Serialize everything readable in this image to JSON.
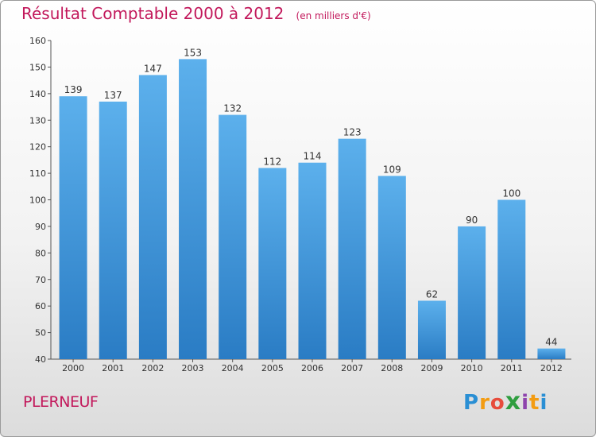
{
  "chart_data": {
    "type": "bar",
    "title": "Résultat Comptable 2000 à 2012",
    "subtitle": "(en milliers d'€)",
    "categories": [
      "2000",
      "2001",
      "2002",
      "2003",
      "2004",
      "2005",
      "2006",
      "2007",
      "2008",
      "2009",
      "2010",
      "2011",
      "2012"
    ],
    "values": [
      139,
      137,
      147,
      153,
      132,
      112,
      114,
      123,
      109,
      62,
      90,
      100,
      44
    ],
    "ylim": [
      40,
      160
    ],
    "yticks": [
      40,
      50,
      60,
      70,
      80,
      90,
      100,
      110,
      120,
      130,
      140,
      150,
      160
    ],
    "xlabel": "",
    "ylabel": "",
    "grid": false,
    "bar_color": "#3a93d8"
  },
  "town": "PLERNEUF",
  "logo": {
    "letters": [
      "P",
      "r",
      "o",
      "x",
      "i",
      "t",
      "i"
    ],
    "colors": [
      "#2a8fd4",
      "#f39c12",
      "#e74c3c",
      "#2e9e3f",
      "#8e44ad",
      "#f39c12",
      "#2a8fd4"
    ]
  },
  "colors": {
    "accent": "#c2185b",
    "bar": "#3a93d8"
  }
}
